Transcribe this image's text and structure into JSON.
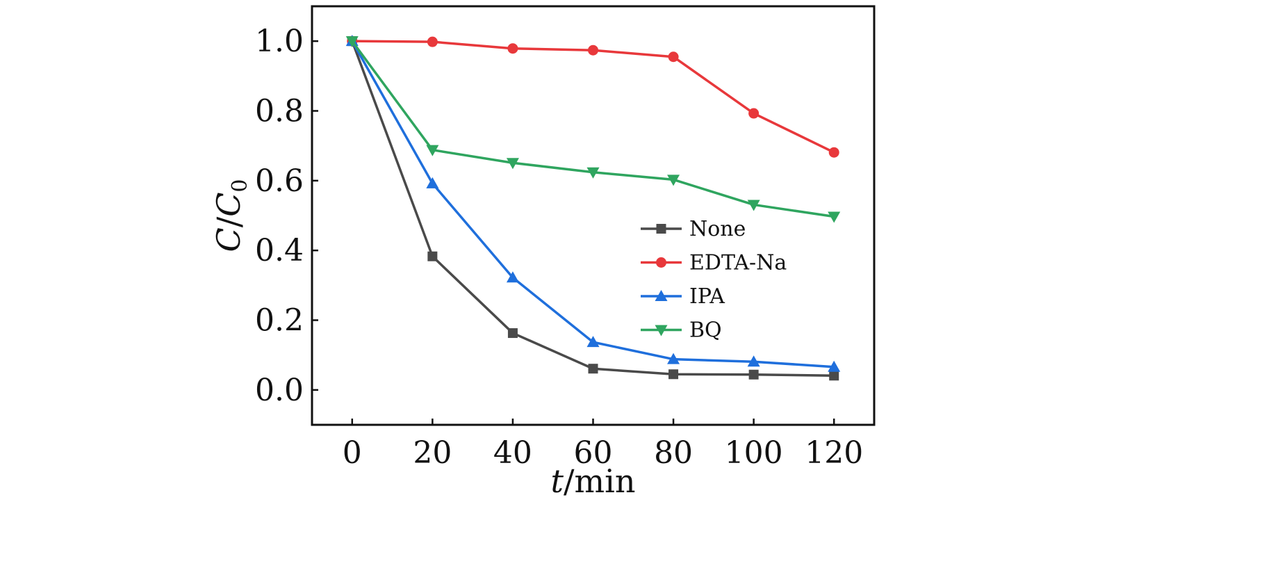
{
  "chart_data": {
    "type": "line",
    "x": [
      0,
      20,
      40,
      60,
      80,
      100,
      120
    ],
    "xlim": [
      -10,
      130
    ],
    "ylim": [
      -0.1,
      1.1
    ],
    "xticks": [
      0,
      20,
      40,
      60,
      80,
      100,
      120
    ],
    "yticks": [
      0.0,
      0.2,
      0.4,
      0.6,
      0.8,
      1.0
    ],
    "xtick_labels": [
      "0",
      "20",
      "40",
      "60",
      "80",
      "100",
      "120"
    ],
    "ytick_labels": [
      "0.0",
      "0.2",
      "0.4",
      "0.6",
      "0.8",
      "1.0"
    ],
    "xlabel": {
      "var": "t",
      "unit": "/min"
    },
    "ylabel": {
      "var": "C",
      "sep": "/",
      "var2": "C",
      "sub": "0"
    },
    "grid": false,
    "legend_position": "center-right",
    "series": [
      {
        "name": "None",
        "color": "#4a4a4a",
        "marker": "square",
        "values": [
          1.0,
          0.383,
          0.163,
          0.061,
          0.045,
          0.044,
          0.041
        ]
      },
      {
        "name": "EDTA-Na",
        "color": "#e8383b",
        "marker": "circle",
        "values": [
          1.0,
          0.998,
          0.979,
          0.974,
          0.955,
          0.793,
          0.681
        ]
      },
      {
        "name": "IPA",
        "color": "#1f6fdc",
        "marker": "triangle-up",
        "values": [
          1.0,
          0.592,
          0.322,
          0.137,
          0.088,
          0.081,
          0.066
        ]
      },
      {
        "name": "BQ",
        "color": "#2fa55f",
        "marker": "triangle-down",
        "values": [
          1.0,
          0.688,
          0.651,
          0.624,
          0.603,
          0.531,
          0.497
        ]
      }
    ]
  }
}
